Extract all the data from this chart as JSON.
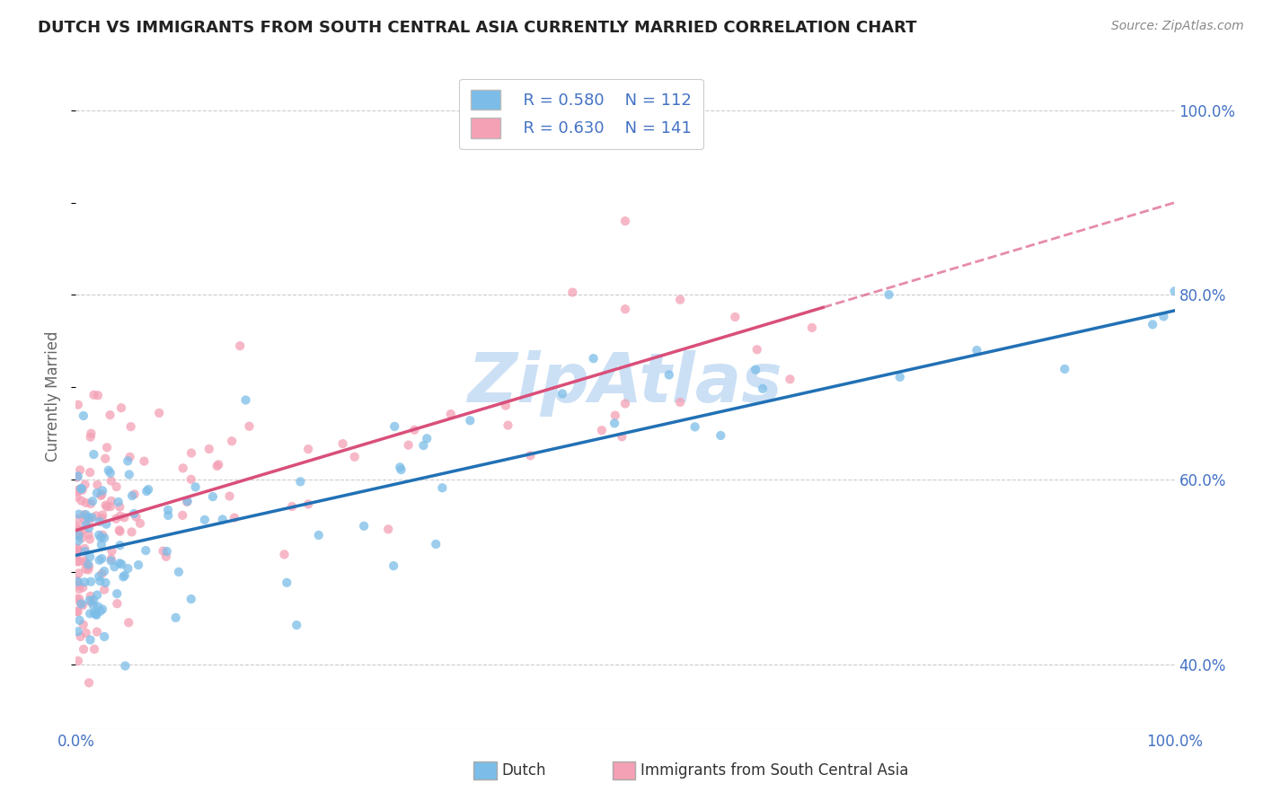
{
  "title": "DUTCH VS IMMIGRANTS FROM SOUTH CENTRAL ASIA CURRENTLY MARRIED CORRELATION CHART",
  "source": "Source: ZipAtlas.com",
  "ylabel": "Currently Married",
  "xlim": [
    0.0,
    1.0
  ],
  "ylim": [
    0.33,
    1.05
  ],
  "y_tick_positions_right": [
    0.4,
    0.6,
    0.8,
    1.0
  ],
  "y_tick_labels_right": [
    "40.0%",
    "60.0%",
    "80.0%",
    "100.0%"
  ],
  "dutch_R": 0.58,
  "dutch_N": 112,
  "immigrant_R": 0.63,
  "immigrant_N": 141,
  "dutch_color": "#7bbde8",
  "immigrant_color": "#f4a0b5",
  "dutch_line_color": "#2171b5",
  "immigrant_line_color": "#d94f7a",
  "axis_color": "#4472c4",
  "background_color": "#ffffff",
  "grid_color": "#cccccc",
  "watermark": "ZipAtlas",
  "watermark_color": "#cce0f5",
  "legend_label_dutch": "Dutch",
  "legend_label_immigrant": "Immigrants from South Central Asia",
  "title_fontsize": 13,
  "dutch_intercept": 0.518,
  "dutch_slope": 0.265,
  "imm_intercept": 0.545,
  "imm_slope": 0.355
}
